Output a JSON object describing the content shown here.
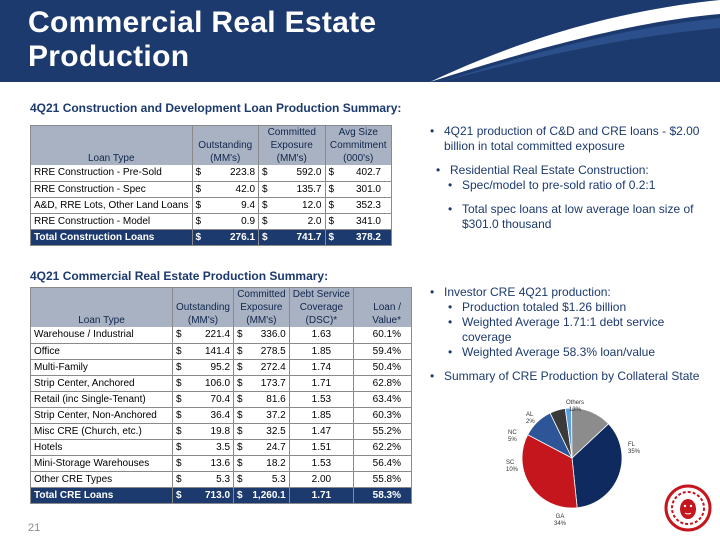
{
  "slide": {
    "title_line1": "Commercial Real Estate",
    "title_line2": "Production",
    "page_number": "21"
  },
  "section1": {
    "heading": "4Q21 Construction and Development Loan Production Summary:",
    "headers": {
      "loan_type": "Loan Type",
      "outstanding": [
        "",
        "Outstanding",
        "(MM's)"
      ],
      "committed": [
        "Committed",
        "Exposure",
        "(MM's)"
      ],
      "avg": [
        "Avg Size",
        "Commitment",
        "(000's)"
      ]
    },
    "rows": [
      {
        "type": "RRE Construction - Pre-Sold",
        "outstanding": "223.8",
        "committed": "592.0",
        "avg": "402.7"
      },
      {
        "type": "RRE Construction - Spec",
        "outstanding": "42.0",
        "committed": "135.7",
        "avg": "301.0"
      },
      {
        "type": "A&D, RRE Lots, Other Land Loans",
        "outstanding": "9.4",
        "committed": "12.0",
        "avg": "352.3"
      },
      {
        "type": "RRE Construction - Model",
        "outstanding": "0.9",
        "committed": "2.0",
        "avg": "341.0"
      }
    ],
    "total": {
      "type": "Total Construction Loans",
      "outstanding": "276.1",
      "committed": "741.7",
      "avg": "378.2"
    },
    "currency": "$"
  },
  "section2": {
    "heading": "4Q21 Commercial Real Estate Production Summary:",
    "headers": {
      "loan_type": "Loan Type",
      "outstanding": [
        "",
        "Outstanding",
        "(MM's)"
      ],
      "committed": [
        "Committed",
        "Exposure",
        "(MM's)"
      ],
      "dsc": [
        "Debt Service",
        "Coverage",
        "(DSC)*"
      ],
      "ltv": [
        "",
        "Loan /",
        "Value*"
      ]
    },
    "rows": [
      {
        "type": "Warehouse / Industrial",
        "outstanding": "221.4",
        "committed": "336.0",
        "dsc": "1.63",
        "ltv": "60.1%"
      },
      {
        "type": "Office",
        "outstanding": "141.4",
        "committed": "278.5",
        "dsc": "1.85",
        "ltv": "59.4%"
      },
      {
        "type": "Multi-Family",
        "outstanding": "95.2",
        "committed": "272.4",
        "dsc": "1.74",
        "ltv": "50.4%"
      },
      {
        "type": "Strip Center, Anchored",
        "outstanding": "106.0",
        "committed": "173.7",
        "dsc": "1.71",
        "ltv": "62.8%"
      },
      {
        "type": "Retail (inc Single-Tenant)",
        "outstanding": "70.4",
        "committed": "81.6",
        "dsc": "1.53",
        "ltv": "63.4%"
      },
      {
        "type": "Strip Center, Non-Anchored",
        "outstanding": "36.4",
        "committed": "37.2",
        "dsc": "1.85",
        "ltv": "60.3%"
      },
      {
        "type": "Misc CRE (Church, etc.)",
        "outstanding": "19.8",
        "committed": "32.5",
        "dsc": "1.47",
        "ltv": "55.2%"
      },
      {
        "type": "Hotels",
        "outstanding": "3.5",
        "committed": "24.7",
        "dsc": "1.51",
        "ltv": "62.2%"
      },
      {
        "type": "Mini-Storage Warehouses",
        "outstanding": "13.6",
        "committed": "18.2",
        "dsc": "1.53",
        "ltv": "56.4%"
      },
      {
        "type": "Other CRE Types",
        "outstanding": "5.3",
        "committed": "5.3",
        "dsc": "2.00",
        "ltv": "55.8%"
      }
    ],
    "total": {
      "type": "Total CRE Loans",
      "outstanding": "713.0",
      "committed": "1,260.1",
      "dsc": "1.71",
      "ltv": "58.3%"
    },
    "currency": "$"
  },
  "bullets1": {
    "b1": "4Q21 production of C&D and CRE loans - $2.00 billion in total committed exposure",
    "b2": "Residential Real Estate Construction:",
    "b3": "Spec/model to pre-sold ratio of 0.2:1",
    "b4": "Total spec loans at low average loan size of $301.0 thousand"
  },
  "bullets2": {
    "b1": "Investor CRE 4Q21 production:",
    "b2": "Production totaled $1.26 billion",
    "b3": "Weighted Average 1.71:1 debt service coverage",
    "b4": "Weighted Average 58.3% loan/value",
    "b5": "Summary of CRE Production by Collateral State"
  },
  "chart_data": {
    "type": "pie",
    "categories": [
      "FL",
      "GA",
      "SC",
      "NC",
      "AL",
      "Others"
    ],
    "values": [
      35,
      34,
      10,
      5,
      2,
      13
    ],
    "labels": [
      {
        "name": "FL",
        "pct": "35%"
      },
      {
        "name": "GA",
        "pct": "34%"
      },
      {
        "name": "SC",
        "pct": "10%"
      },
      {
        "name": "NC",
        "pct": "5%"
      },
      {
        "name": "AL",
        "pct": "2%"
      },
      {
        "name": "Others",
        "pct": "13%"
      }
    ],
    "colors": [
      "#0f2a5e",
      "#c4161c",
      "#2e5597",
      "#3a3a3a",
      "#5aa0dc",
      "#8c8c8c"
    ]
  },
  "colors": {
    "brand_navy": "#1c3a6e",
    "header_gray": "#a9b2c3",
    "logo_red": "#c4161c"
  }
}
